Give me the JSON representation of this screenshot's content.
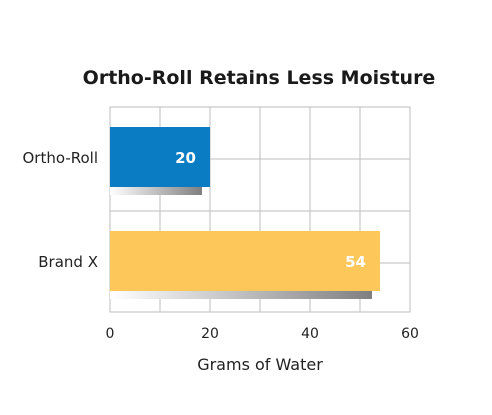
{
  "chart_data": {
    "type": "bar",
    "orientation": "horizontal",
    "title": "Ortho-Roll Retains Less Moisture",
    "xlabel": "Grams of Water",
    "ylabel": "",
    "categories": [
      "Ortho-Roll",
      "Brand X"
    ],
    "values": [
      20,
      54
    ],
    "data_labels": [
      "20",
      "54"
    ],
    "xlim": [
      0,
      60
    ],
    "x_ticks": [
      "0",
      "20",
      "40",
      "60"
    ],
    "grid": true,
    "legend": "none",
    "colors": [
      "#0a7cc4",
      "#fdc75a"
    ],
    "shadow_color": "#7f7f7f"
  }
}
